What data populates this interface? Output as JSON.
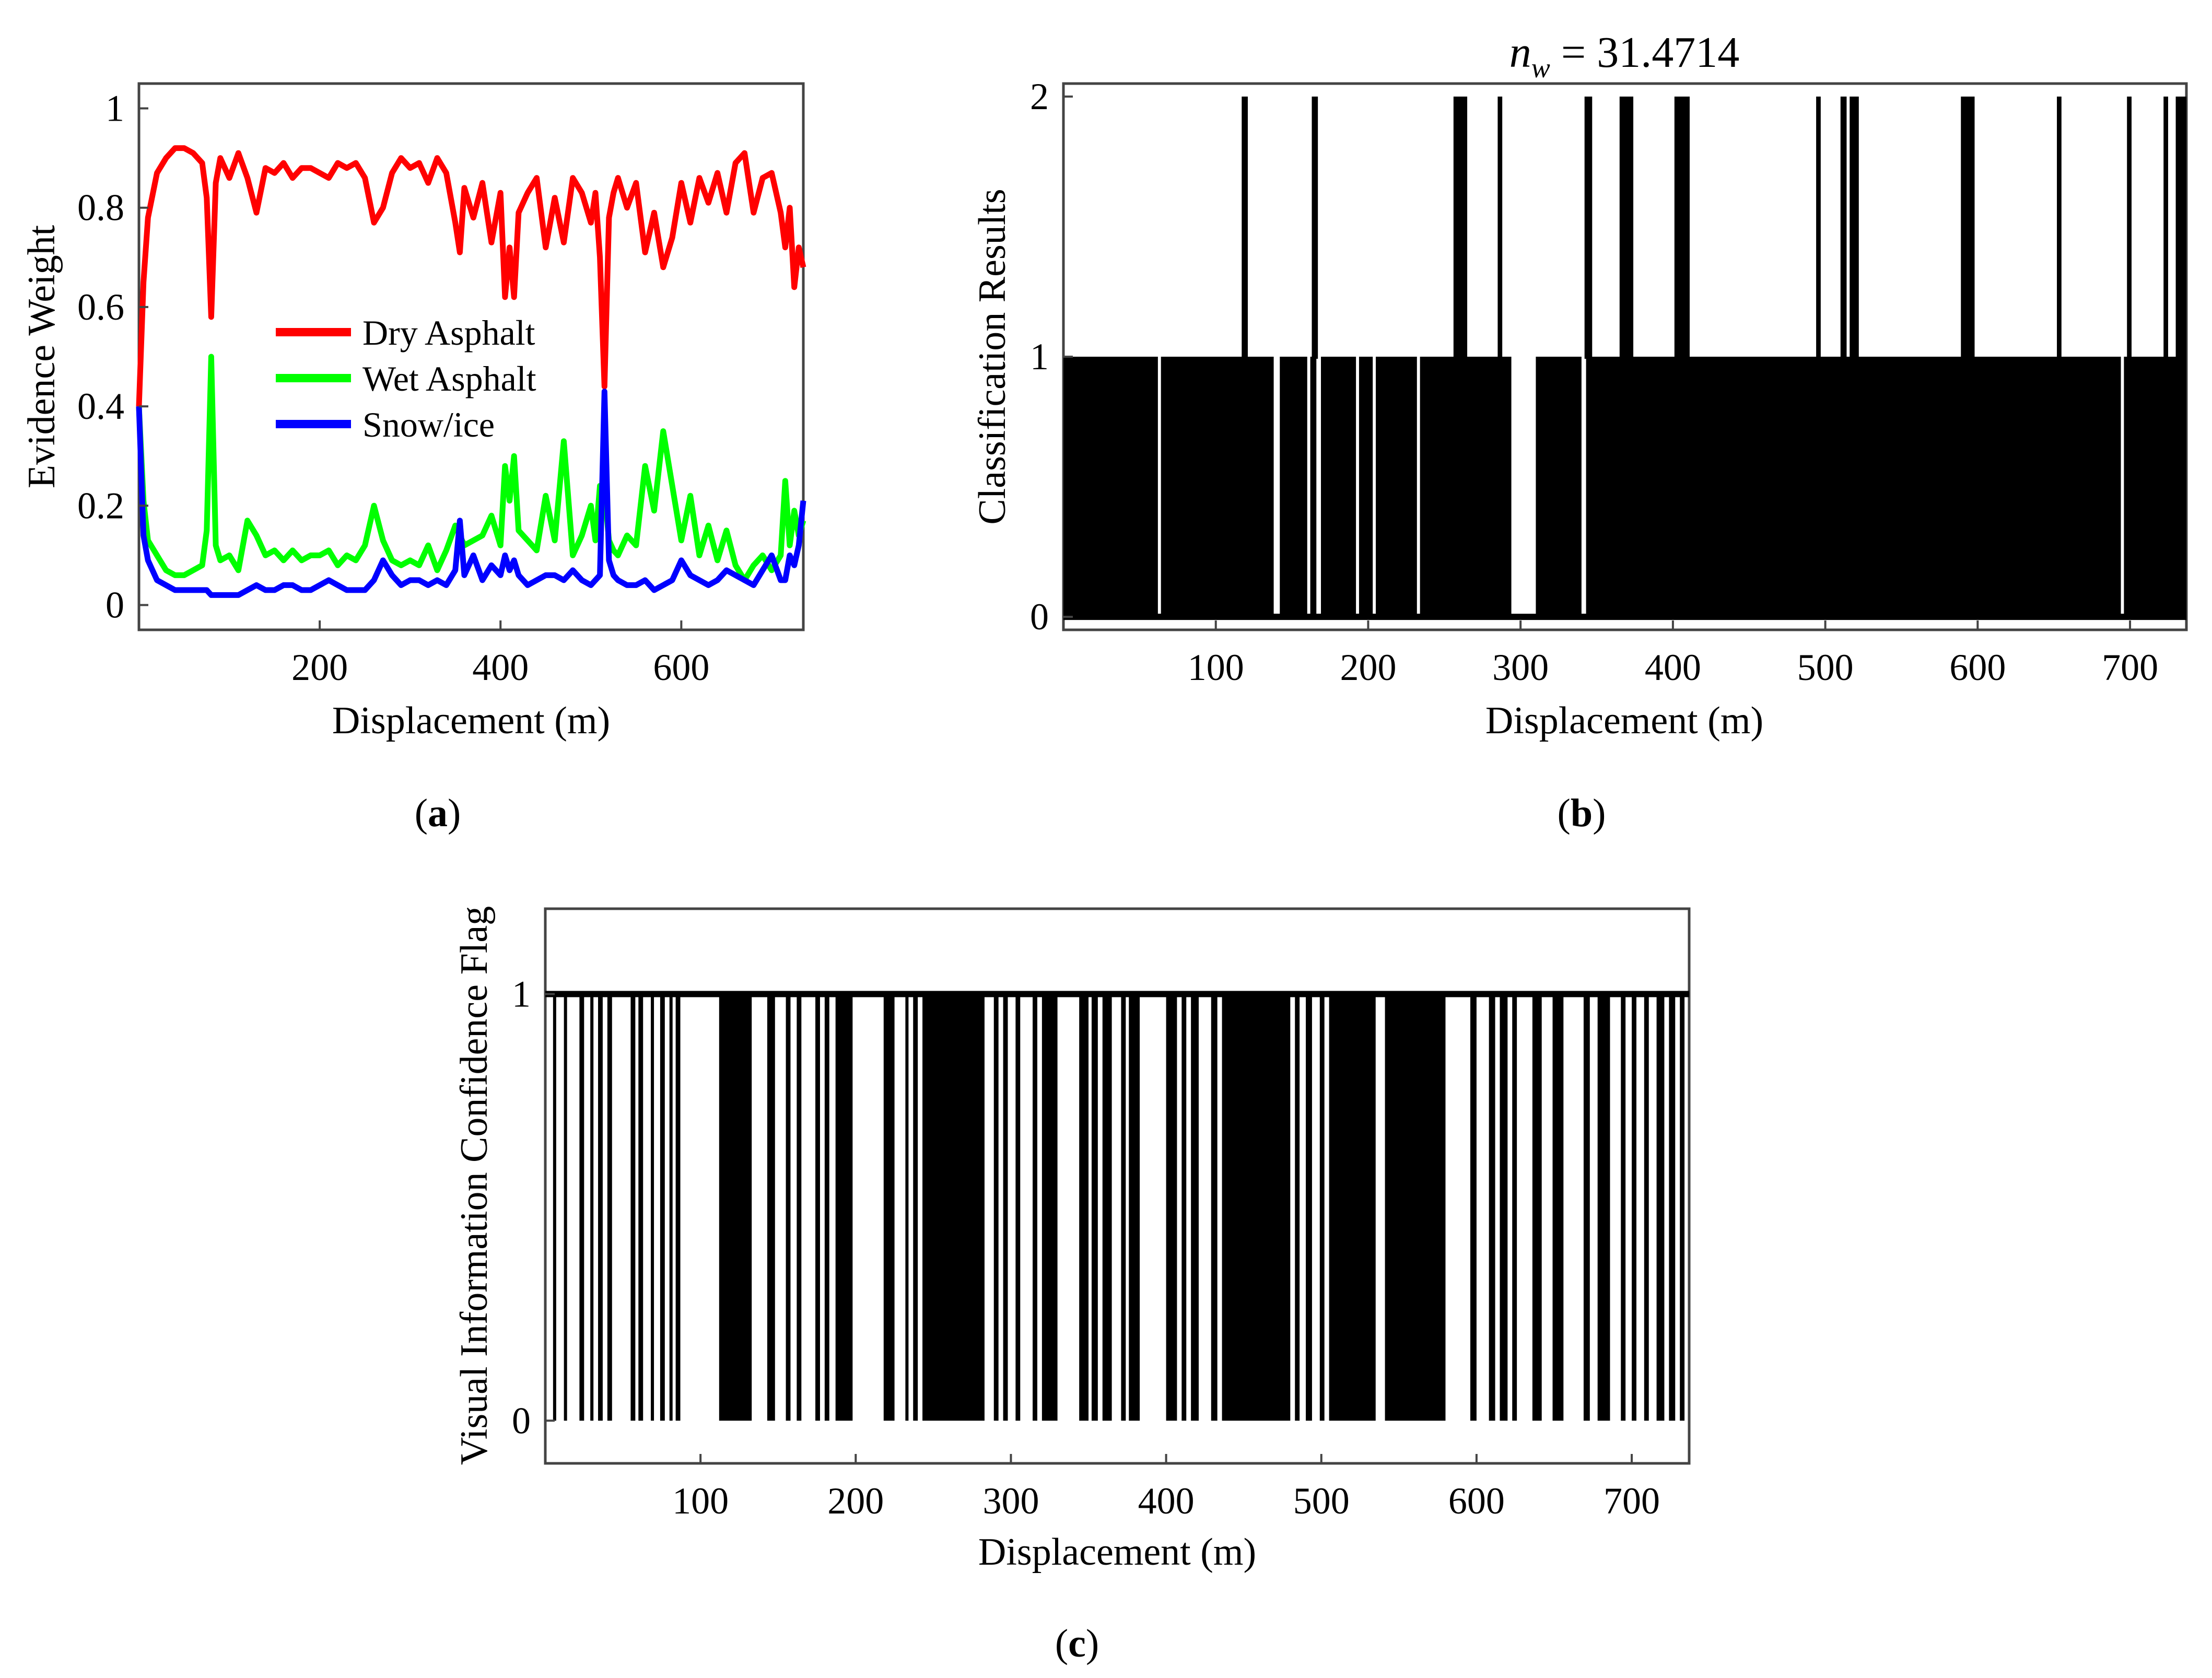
{
  "chart_data": [
    {
      "id": "a",
      "panel_label": "a",
      "type": "line",
      "title": "",
      "xlabel": "Displacement (m)",
      "ylabel": "Evidence Weight",
      "xlim": [
        0,
        735
      ],
      "ylim": [
        -0.05,
        1.05
      ],
      "xticks": [
        200,
        400,
        600
      ],
      "yticks": [
        0,
        0.2,
        0.4,
        0.6,
        0.8,
        1
      ],
      "ytick_labels": [
        "0",
        "0.2",
        "0.4",
        "0.6",
        "0.8",
        "1"
      ],
      "legend_position": "center",
      "series": [
        {
          "name": "Dry Asphalt",
          "color": "#ff0000",
          "x": [
            0,
            5,
            10,
            20,
            30,
            40,
            50,
            60,
            70,
            75,
            80,
            85,
            90,
            100,
            110,
            120,
            130,
            140,
            150,
            160,
            170,
            180,
            190,
            200,
            210,
            220,
            230,
            240,
            250,
            260,
            270,
            280,
            290,
            300,
            310,
            320,
            330,
            340,
            350,
            355,
            360,
            370,
            380,
            390,
            400,
            405,
            410,
            415,
            420,
            430,
            440,
            450,
            460,
            470,
            480,
            490,
            500,
            505,
            510,
            515,
            520,
            525,
            530,
            540,
            550,
            560,
            570,
            580,
            590,
            600,
            610,
            620,
            630,
            640,
            650,
            660,
            670,
            680,
            690,
            700,
            710,
            715,
            720,
            725,
            730,
            735
          ],
          "y": [
            0.4,
            0.65,
            0.78,
            0.87,
            0.9,
            0.92,
            0.92,
            0.91,
            0.89,
            0.82,
            0.58,
            0.85,
            0.9,
            0.86,
            0.91,
            0.86,
            0.79,
            0.88,
            0.87,
            0.89,
            0.86,
            0.88,
            0.88,
            0.87,
            0.86,
            0.89,
            0.88,
            0.89,
            0.86,
            0.77,
            0.8,
            0.87,
            0.9,
            0.88,
            0.89,
            0.85,
            0.9,
            0.87,
            0.77,
            0.71,
            0.84,
            0.78,
            0.85,
            0.73,
            0.83,
            0.62,
            0.72,
            0.62,
            0.79,
            0.83,
            0.86,
            0.72,
            0.82,
            0.73,
            0.86,
            0.83,
            0.77,
            0.83,
            0.7,
            0.44,
            0.78,
            0.83,
            0.86,
            0.8,
            0.85,
            0.71,
            0.79,
            0.68,
            0.74,
            0.85,
            0.77,
            0.86,
            0.81,
            0.87,
            0.79,
            0.89,
            0.91,
            0.79,
            0.86,
            0.87,
            0.79,
            0.72,
            0.8,
            0.64,
            0.72,
            0.68
          ]
        },
        {
          "name": "Wet Asphalt",
          "color": "#00ff00",
          "x": [
            0,
            5,
            10,
            20,
            30,
            40,
            50,
            60,
            70,
            75,
            80,
            85,
            90,
            100,
            110,
            120,
            130,
            140,
            150,
            160,
            170,
            180,
            190,
            200,
            210,
            220,
            230,
            240,
            250,
            260,
            270,
            280,
            290,
            300,
            310,
            320,
            330,
            340,
            350,
            355,
            360,
            370,
            380,
            390,
            400,
            405,
            410,
            415,
            420,
            430,
            440,
            450,
            460,
            470,
            480,
            490,
            500,
            505,
            510,
            515,
            520,
            525,
            530,
            540,
            550,
            560,
            570,
            580,
            590,
            600,
            610,
            620,
            630,
            640,
            650,
            660,
            670,
            680,
            690,
            700,
            710,
            715,
            720,
            725,
            730,
            735
          ],
          "y": [
            0.4,
            0.21,
            0.13,
            0.1,
            0.07,
            0.06,
            0.06,
            0.07,
            0.08,
            0.15,
            0.5,
            0.12,
            0.09,
            0.1,
            0.07,
            0.17,
            0.14,
            0.1,
            0.11,
            0.09,
            0.11,
            0.09,
            0.1,
            0.1,
            0.11,
            0.08,
            0.1,
            0.09,
            0.12,
            0.2,
            0.13,
            0.09,
            0.08,
            0.09,
            0.08,
            0.12,
            0.07,
            0.11,
            0.16,
            0.14,
            0.12,
            0.13,
            0.14,
            0.18,
            0.12,
            0.28,
            0.21,
            0.3,
            0.15,
            0.13,
            0.11,
            0.22,
            0.13,
            0.33,
            0.1,
            0.14,
            0.2,
            0.13,
            0.24,
            0.23,
            0.13,
            0.11,
            0.1,
            0.14,
            0.12,
            0.28,
            0.19,
            0.35,
            0.24,
            0.13,
            0.22,
            0.1,
            0.16,
            0.09,
            0.15,
            0.08,
            0.05,
            0.08,
            0.1,
            0.07,
            0.1,
            0.25,
            0.12,
            0.19,
            0.14,
            0.17
          ]
        },
        {
          "name": "Snow/ice",
          "color": "#0000ff",
          "x": [
            0,
            5,
            10,
            20,
            30,
            40,
            50,
            60,
            70,
            75,
            80,
            85,
            90,
            100,
            110,
            120,
            130,
            140,
            150,
            160,
            170,
            180,
            190,
            200,
            210,
            220,
            230,
            240,
            250,
            260,
            270,
            280,
            290,
            300,
            310,
            320,
            330,
            340,
            350,
            355,
            360,
            370,
            380,
            390,
            400,
            405,
            410,
            415,
            420,
            430,
            440,
            450,
            460,
            470,
            480,
            490,
            500,
            505,
            510,
            515,
            520,
            525,
            530,
            540,
            550,
            560,
            570,
            580,
            590,
            600,
            610,
            620,
            630,
            640,
            650,
            660,
            670,
            680,
            690,
            700,
            710,
            715,
            720,
            725,
            730,
            735
          ],
          "y": [
            0.4,
            0.14,
            0.09,
            0.05,
            0.04,
            0.03,
            0.03,
            0.03,
            0.03,
            0.03,
            0.02,
            0.02,
            0.02,
            0.02,
            0.02,
            0.03,
            0.04,
            0.03,
            0.03,
            0.04,
            0.04,
            0.03,
            0.03,
            0.04,
            0.05,
            0.04,
            0.03,
            0.03,
            0.03,
            0.05,
            0.09,
            0.06,
            0.04,
            0.05,
            0.05,
            0.04,
            0.05,
            0.04,
            0.07,
            0.17,
            0.06,
            0.1,
            0.05,
            0.08,
            0.06,
            0.1,
            0.07,
            0.09,
            0.06,
            0.04,
            0.05,
            0.06,
            0.06,
            0.05,
            0.07,
            0.05,
            0.04,
            0.05,
            0.06,
            0.43,
            0.09,
            0.06,
            0.05,
            0.04,
            0.04,
            0.05,
            0.03,
            0.04,
            0.05,
            0.09,
            0.06,
            0.05,
            0.04,
            0.05,
            0.07,
            0.06,
            0.05,
            0.04,
            0.07,
            0.1,
            0.05,
            0.05,
            0.1,
            0.08,
            0.12,
            0.21
          ]
        }
      ]
    },
    {
      "id": "b",
      "panel_label": "b",
      "type": "bar",
      "title_main": "n",
      "title_subscript": "w",
      "title_value": " = 31.4714",
      "xlabel": "Displacement (m)",
      "ylabel": "Classification Results",
      "xlim": [
        0,
        737
      ],
      "ylim": [
        -0.05,
        2.05
      ],
      "xticks": [
        100,
        200,
        300,
        400,
        500,
        600,
        700
      ],
      "yticks": [
        0,
        1,
        2
      ],
      "baseline_class": 0,
      "dense_regions": [
        {
          "start": 0,
          "end": 294,
          "value": 1
        },
        {
          "start": 310,
          "end": 737,
          "value": 1
        }
      ],
      "gaps": [
        {
          "start": 62,
          "end": 64
        },
        {
          "start": 138,
          "end": 142
        },
        {
          "start": 160,
          "end": 162
        },
        {
          "start": 166,
          "end": 169
        },
        {
          "start": 192,
          "end": 194
        },
        {
          "start": 203,
          "end": 205
        },
        {
          "start": 232,
          "end": 234
        },
        {
          "start": 294,
          "end": 310
        },
        {
          "start": 340,
          "end": 343
        },
        {
          "start": 694,
          "end": 696
        }
      ],
      "spikes": [
        {
          "start": 117,
          "end": 121,
          "value": 2
        },
        {
          "start": 163,
          "end": 167,
          "value": 2
        },
        {
          "start": 256,
          "end": 265,
          "value": 2
        },
        {
          "start": 285,
          "end": 288,
          "value": 2
        },
        {
          "start": 342,
          "end": 347,
          "value": 2
        },
        {
          "start": 365,
          "end": 374,
          "value": 2
        },
        {
          "start": 401,
          "end": 411,
          "value": 2
        },
        {
          "start": 494,
          "end": 497,
          "value": 2
        },
        {
          "start": 510,
          "end": 514,
          "value": 2
        },
        {
          "start": 516,
          "end": 522,
          "value": 2
        },
        {
          "start": 589,
          "end": 598,
          "value": 2
        },
        {
          "start": 652,
          "end": 655,
          "value": 2
        },
        {
          "start": 698,
          "end": 701,
          "value": 2
        },
        {
          "start": 722,
          "end": 725,
          "value": 2
        },
        {
          "start": 730,
          "end": 737,
          "value": 2
        }
      ]
    },
    {
      "id": "c",
      "panel_label": "c",
      "type": "bar",
      "title": "",
      "xlabel": "Displacement (m)",
      "ylabel": "Visual Information Confidence Flag",
      "xlim": [
        0,
        737
      ],
      "ylim": [
        -0.1,
        1.2
      ],
      "xticks": [
        100,
        200,
        300,
        400,
        500,
        600,
        700
      ],
      "yticks": [
        0,
        1
      ],
      "baseline_flag": 1,
      "zero_segments": [
        {
          "start": 5,
          "end": 7
        },
        {
          "start": 12,
          "end": 14
        },
        {
          "start": 22,
          "end": 25
        },
        {
          "start": 29,
          "end": 31
        },
        {
          "start": 34,
          "end": 37
        },
        {
          "start": 40,
          "end": 43
        },
        {
          "start": 55,
          "end": 58
        },
        {
          "start": 60,
          "end": 63
        },
        {
          "start": 68,
          "end": 70
        },
        {
          "start": 74,
          "end": 77
        },
        {
          "start": 80,
          "end": 82
        },
        {
          "start": 84,
          "end": 87
        },
        {
          "start": 112,
          "end": 133
        },
        {
          "start": 143,
          "end": 148
        },
        {
          "start": 155,
          "end": 158
        },
        {
          "start": 162,
          "end": 165
        },
        {
          "start": 174,
          "end": 177
        },
        {
          "start": 180,
          "end": 183
        },
        {
          "start": 187,
          "end": 198
        },
        {
          "start": 218,
          "end": 225
        },
        {
          "start": 232,
          "end": 234
        },
        {
          "start": 237,
          "end": 240
        },
        {
          "start": 243,
          "end": 283
        },
        {
          "start": 289,
          "end": 292
        },
        {
          "start": 295,
          "end": 298
        },
        {
          "start": 303,
          "end": 306
        },
        {
          "start": 314,
          "end": 317
        },
        {
          "start": 320,
          "end": 330
        },
        {
          "start": 344,
          "end": 350
        },
        {
          "start": 352,
          "end": 356
        },
        {
          "start": 359,
          "end": 365
        },
        {
          "start": 371,
          "end": 374
        },
        {
          "start": 376,
          "end": 383
        },
        {
          "start": 400,
          "end": 407
        },
        {
          "start": 410,
          "end": 413
        },
        {
          "start": 416,
          "end": 421
        },
        {
          "start": 429,
          "end": 433
        },
        {
          "start": 436,
          "end": 480
        },
        {
          "start": 483,
          "end": 486
        },
        {
          "start": 490,
          "end": 494
        },
        {
          "start": 499,
          "end": 502
        },
        {
          "start": 505,
          "end": 535
        },
        {
          "start": 541,
          "end": 580
        },
        {
          "start": 596,
          "end": 600
        },
        {
          "start": 608,
          "end": 612
        },
        {
          "start": 615,
          "end": 620
        },
        {
          "start": 623,
          "end": 626
        },
        {
          "start": 636,
          "end": 642
        },
        {
          "start": 649,
          "end": 656
        },
        {
          "start": 669,
          "end": 673
        },
        {
          "start": 678,
          "end": 686
        },
        {
          "start": 693,
          "end": 696
        },
        {
          "start": 700,
          "end": 703
        },
        {
          "start": 708,
          "end": 711
        },
        {
          "start": 716,
          "end": 721
        },
        {
          "start": 724,
          "end": 728
        },
        {
          "start": 731,
          "end": 734
        }
      ]
    }
  ]
}
